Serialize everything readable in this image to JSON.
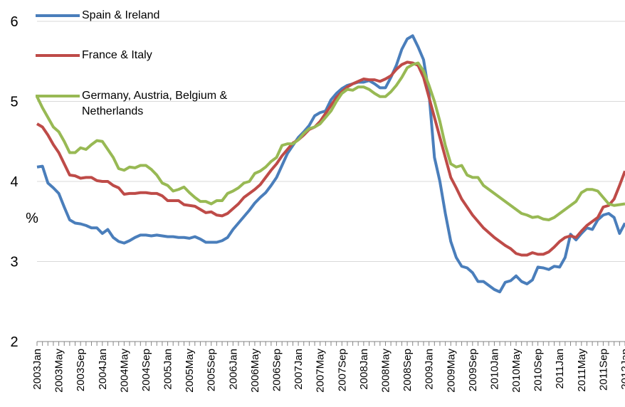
{
  "chart_data": {
    "type": "line",
    "y_label": "%",
    "categories": [
      "2003Jan",
      null,
      null,
      null,
      "2003May",
      null,
      null,
      null,
      "2003Sep",
      null,
      null,
      null,
      "2004Jan",
      null,
      null,
      null,
      "2004May",
      null,
      null,
      null,
      "2004Sep",
      null,
      null,
      null,
      "2005Jan",
      null,
      null,
      null,
      "2005May",
      null,
      null,
      null,
      "2005Sep",
      null,
      null,
      null,
      "2006Jan",
      null,
      null,
      null,
      "2006May",
      null,
      null,
      null,
      "2006Sep",
      null,
      null,
      null,
      "2007Jan",
      null,
      null,
      null,
      "2007May",
      null,
      null,
      null,
      "2007Sep",
      null,
      null,
      null,
      "2008Jan",
      null,
      null,
      null,
      "2008May",
      null,
      null,
      null,
      "2008Sep",
      null,
      null,
      null,
      "2009Jan",
      null,
      null,
      null,
      "2009May",
      null,
      null,
      null,
      "2009Sep",
      null,
      null,
      null,
      "2010Jan",
      null,
      null,
      null,
      "2010May",
      null,
      null,
      null,
      "2010Sep",
      null,
      null,
      null,
      "2011Jan",
      null,
      null,
      null,
      "2011May",
      null,
      null,
      null,
      "2011Sep",
      null,
      null,
      null,
      "2012Jan"
    ],
    "series": [
      {
        "name": "Spain & Ireland",
        "color": "#4a7ebb",
        "values": [
          4.18,
          4.19,
          3.98,
          3.92,
          3.85,
          3.68,
          3.52,
          3.48,
          3.47,
          3.45,
          3.42,
          3.42,
          3.35,
          3.4,
          3.3,
          3.25,
          3.23,
          3.26,
          3.3,
          3.33,
          3.33,
          3.32,
          3.33,
          3.32,
          3.31,
          3.31,
          3.3,
          3.3,
          3.29,
          3.31,
          3.28,
          3.24,
          3.24,
          3.24,
          3.26,
          3.3,
          3.4,
          3.48,
          3.56,
          3.64,
          3.73,
          3.8,
          3.86,
          3.95,
          4.05,
          4.2,
          4.35,
          4.45,
          4.55,
          4.62,
          4.7,
          4.82,
          4.86,
          4.88,
          5.02,
          5.1,
          5.16,
          5.2,
          5.22,
          5.24,
          5.24,
          5.26,
          5.22,
          5.17,
          5.17,
          5.3,
          5.45,
          5.65,
          5.78,
          5.82,
          5.68,
          5.52,
          5.1,
          4.3,
          4.0,
          3.6,
          3.25,
          3.05,
          2.94,
          2.92,
          2.86,
          2.75,
          2.75,
          2.7,
          2.65,
          2.62,
          2.74,
          2.76,
          2.82,
          2.75,
          2.72,
          2.77,
          2.93,
          2.92,
          2.9,
          2.94,
          2.93,
          3.05,
          3.34,
          3.27,
          3.35,
          3.42,
          3.4,
          3.52,
          3.58,
          3.6,
          3.55,
          3.35,
          3.48
        ]
      },
      {
        "name": "France  & Italy",
        "color": "#be4b48",
        "values": [
          4.72,
          4.68,
          4.58,
          4.46,
          4.36,
          4.22,
          4.08,
          4.07,
          4.04,
          4.05,
          4.05,
          4.01,
          4.0,
          4.0,
          3.95,
          3.92,
          3.84,
          3.85,
          3.85,
          3.86,
          3.86,
          3.85,
          3.85,
          3.82,
          3.76,
          3.76,
          3.76,
          3.71,
          3.7,
          3.69,
          3.65,
          3.61,
          3.62,
          3.58,
          3.57,
          3.6,
          3.66,
          3.72,
          3.8,
          3.85,
          3.9,
          3.96,
          4.05,
          4.14,
          4.22,
          4.32,
          4.4,
          4.48,
          4.52,
          4.58,
          4.65,
          4.68,
          4.75,
          4.85,
          4.95,
          5.05,
          5.12,
          5.18,
          5.22,
          5.25,
          5.28,
          5.27,
          5.27,
          5.25,
          5.28,
          5.32,
          5.4,
          5.46,
          5.49,
          5.48,
          5.45,
          5.3,
          5.05,
          4.8,
          4.55,
          4.3,
          4.05,
          3.92,
          3.78,
          3.68,
          3.58,
          3.5,
          3.42,
          3.36,
          3.3,
          3.25,
          3.2,
          3.16,
          3.1,
          3.08,
          3.08,
          3.11,
          3.09,
          3.09,
          3.12,
          3.18,
          3.25,
          3.3,
          3.32,
          3.3,
          3.38,
          3.45,
          3.5,
          3.55,
          3.68,
          3.7,
          3.78,
          3.95,
          4.13
        ]
      },
      {
        "name": "Germany, Austria, Belgium & Netherlands",
        "color": "#98b954",
        "values": [
          5.06,
          4.92,
          4.8,
          4.68,
          4.62,
          4.5,
          4.36,
          4.36,
          4.42,
          4.4,
          4.46,
          4.51,
          4.5,
          4.4,
          4.3,
          4.16,
          4.14,
          4.18,
          4.17,
          4.2,
          4.2,
          4.15,
          4.08,
          3.98,
          3.95,
          3.88,
          3.9,
          3.93,
          3.86,
          3.8,
          3.75,
          3.75,
          3.72,
          3.76,
          3.76,
          3.85,
          3.88,
          3.92,
          3.98,
          4.0,
          4.1,
          4.13,
          4.18,
          4.25,
          4.3,
          4.45,
          4.47,
          4.47,
          4.52,
          4.6,
          4.66,
          4.68,
          4.72,
          4.8,
          4.88,
          5.0,
          5.1,
          5.15,
          5.14,
          5.18,
          5.18,
          5.15,
          5.1,
          5.06,
          5.06,
          5.12,
          5.2,
          5.3,
          5.42,
          5.46,
          5.48,
          5.38,
          5.2,
          5.0,
          4.75,
          4.45,
          4.22,
          4.18,
          4.2,
          4.08,
          4.05,
          4.05,
          3.95,
          3.9,
          3.85,
          3.8,
          3.75,
          3.7,
          3.65,
          3.6,
          3.58,
          3.55,
          3.56,
          3.53,
          3.52,
          3.55,
          3.6,
          3.65,
          3.7,
          3.75,
          3.86,
          3.9,
          3.9,
          3.88,
          3.8,
          3.72,
          3.7,
          3.71,
          3.72
        ]
      }
    ],
    "ylim": [
      2,
      6
    ],
    "yticks": [
      2,
      3,
      4,
      5,
      6
    ],
    "grid": true
  }
}
